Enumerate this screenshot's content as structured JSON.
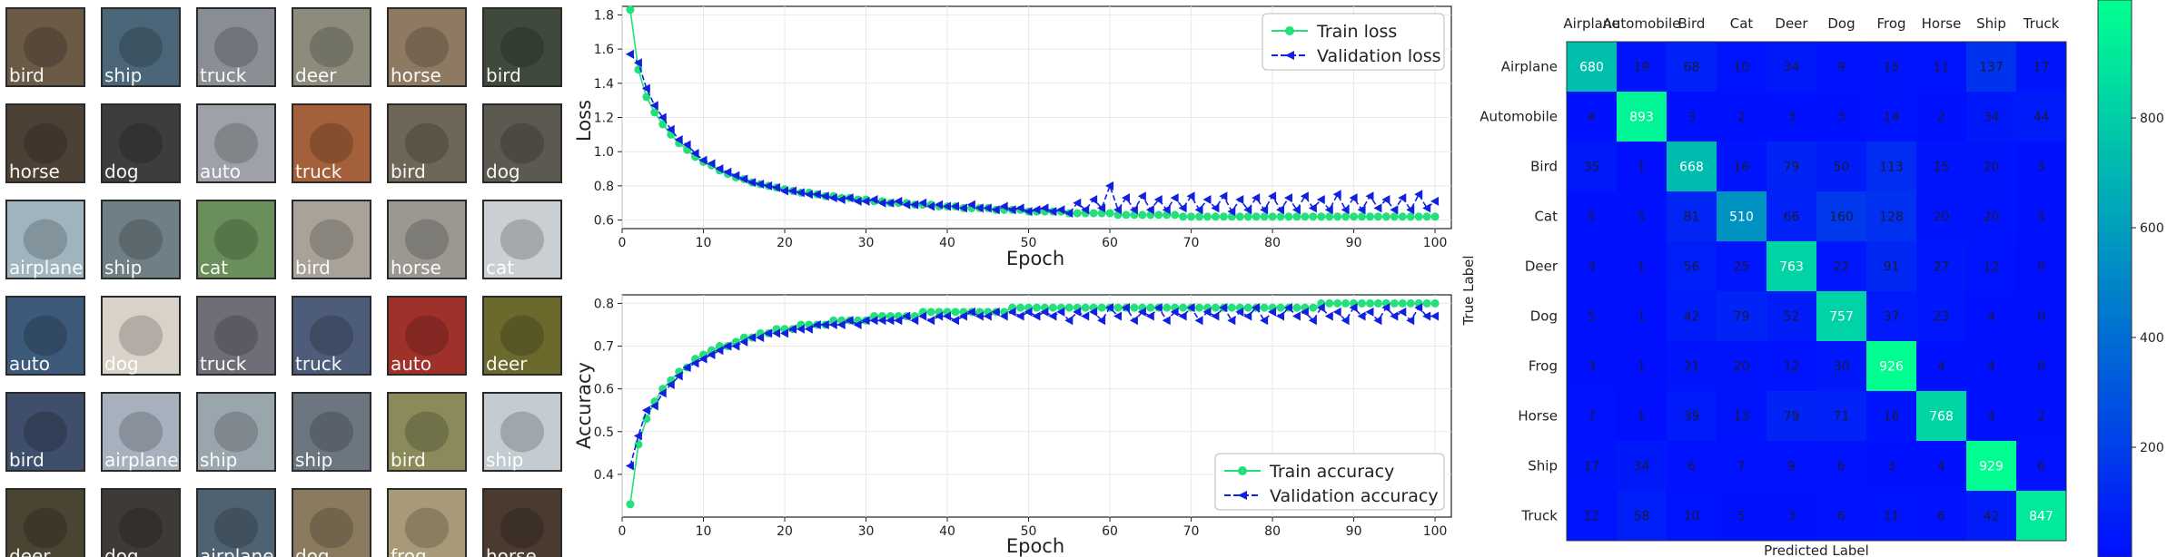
{
  "samples": {
    "grid": [
      [
        "bird",
        "ship",
        "truck",
        "deer",
        "horse",
        "bird"
      ],
      [
        "horse",
        "dog",
        "auto",
        "truck",
        "bird",
        "dog"
      ],
      [
        "airplane",
        "ship",
        "cat",
        "bird",
        "horse",
        "cat"
      ],
      [
        "auto",
        "dog",
        "truck",
        "truck",
        "auto",
        "deer"
      ],
      [
        "bird",
        "airplane",
        "ship",
        "ship",
        "bird",
        "ship"
      ],
      [
        "deer",
        "dog",
        "airplane",
        "dog",
        "frog",
        "horse"
      ]
    ],
    "tile_colors": [
      [
        "#6b5a46",
        "#4a6678",
        "#8a8f96",
        "#8c8b7c",
        "#8e7a62",
        "#3f4a3c"
      ],
      [
        "#4d4136",
        "#3d3d3d",
        "#9ea2a8",
        "#a3603a",
        "#6e6656",
        "#5c5a50"
      ],
      [
        "#9fb4be",
        "#6f7f86",
        "#6a8f5a",
        "#a8a298",
        "#9a9890",
        "#c9cfd2"
      ],
      [
        "#3d5a7a",
        "#d9d2c8",
        "#6e6e78",
        "#4d5c78",
        "#a0302a",
        "#6b6a2c"
      ],
      [
        "#3f4e6a",
        "#a7b0bd",
        "#9aa6ae",
        "#6c7680",
        "#8a8a5a",
        "#c4ccd2"
      ],
      [
        "#4a4432",
        "#3e3a36",
        "#4f6272",
        "#8a7a5e",
        "#a89a78",
        "#4a3a30"
      ]
    ]
  },
  "chart_data": [
    {
      "type": "line",
      "ylabel": "Loss",
      "xlabel": "Epoch",
      "xlim": [
        0,
        102
      ],
      "ylim": [
        0.55,
        1.85
      ],
      "xticks": [
        0,
        10,
        20,
        30,
        40,
        50,
        60,
        70,
        80,
        90,
        100
      ],
      "yticks": [
        0.6,
        0.8,
        1.0,
        1.2,
        1.4,
        1.6,
        1.8
      ],
      "legend_position": "upper-right",
      "grid": true,
      "series": [
        {
          "name": "Train loss",
          "color": "#22e07a",
          "values": [
            1.83,
            1.48,
            1.32,
            1.23,
            1.16,
            1.1,
            1.05,
            1.01,
            0.97,
            0.94,
            0.92,
            0.89,
            0.87,
            0.85,
            0.84,
            0.82,
            0.81,
            0.8,
            0.79,
            0.78,
            0.77,
            0.76,
            0.76,
            0.75,
            0.74,
            0.74,
            0.73,
            0.73,
            0.72,
            0.72,
            0.71,
            0.71,
            0.7,
            0.7,
            0.7,
            0.69,
            0.69,
            0.69,
            0.68,
            0.68,
            0.68,
            0.67,
            0.67,
            0.67,
            0.67,
            0.66,
            0.66,
            0.66,
            0.66,
            0.65,
            0.65,
            0.65,
            0.65,
            0.65,
            0.64,
            0.64,
            0.64,
            0.64,
            0.64,
            0.64,
            0.63,
            0.63,
            0.63,
            0.63,
            0.63,
            0.63,
            0.63,
            0.63,
            0.62,
            0.62,
            0.62,
            0.62,
            0.62,
            0.62,
            0.62,
            0.62,
            0.62,
            0.62,
            0.62,
            0.62,
            0.62,
            0.62,
            0.62,
            0.62,
            0.62,
            0.62,
            0.62,
            0.62,
            0.62,
            0.62,
            0.62,
            0.62,
            0.62,
            0.62,
            0.62,
            0.62,
            0.62,
            0.62,
            0.62,
            0.62
          ]
        },
        {
          "name": "Validation loss",
          "color": "#1020e0",
          "values": [
            1.57,
            1.52,
            1.37,
            1.27,
            1.2,
            1.13,
            1.07,
            1.04,
            0.99,
            0.95,
            0.93,
            0.9,
            0.88,
            0.86,
            0.84,
            0.82,
            0.81,
            0.8,
            0.79,
            0.77,
            0.77,
            0.76,
            0.75,
            0.75,
            0.74,
            0.73,
            0.72,
            0.73,
            0.71,
            0.71,
            0.72,
            0.7,
            0.7,
            0.71,
            0.69,
            0.69,
            0.7,
            0.68,
            0.69,
            0.68,
            0.68,
            0.67,
            0.69,
            0.67,
            0.67,
            0.66,
            0.68,
            0.66,
            0.67,
            0.65,
            0.66,
            0.67,
            0.65,
            0.66,
            0.64,
            0.7,
            0.66,
            0.72,
            0.67,
            0.8,
            0.66,
            0.73,
            0.66,
            0.74,
            0.66,
            0.72,
            0.66,
            0.73,
            0.67,
            0.74,
            0.66,
            0.72,
            0.67,
            0.74,
            0.65,
            0.72,
            0.66,
            0.73,
            0.66,
            0.74,
            0.66,
            0.73,
            0.66,
            0.74,
            0.67,
            0.72,
            0.66,
            0.75,
            0.66,
            0.73,
            0.66,
            0.74,
            0.67,
            0.72,
            0.66,
            0.73,
            0.66,
            0.75,
            0.67,
            0.71
          ]
        }
      ]
    },
    {
      "type": "line",
      "ylabel": "Accuracy",
      "xlabel": "Epoch",
      "xlim": [
        0,
        102
      ],
      "ylim": [
        0.3,
        0.82
      ],
      "xticks": [
        0,
        10,
        20,
        30,
        40,
        50,
        60,
        70,
        80,
        90,
        100
      ],
      "yticks": [
        0.4,
        0.5,
        0.6,
        0.7,
        0.8
      ],
      "legend_position": "lower-right",
      "grid": true,
      "series": [
        {
          "name": "Train accuracy",
          "color": "#22e07a",
          "values": [
            0.33,
            0.47,
            0.53,
            0.57,
            0.6,
            0.62,
            0.64,
            0.65,
            0.67,
            0.68,
            0.69,
            0.7,
            0.7,
            0.71,
            0.72,
            0.72,
            0.73,
            0.73,
            0.74,
            0.74,
            0.74,
            0.75,
            0.75,
            0.75,
            0.75,
            0.76,
            0.76,
            0.76,
            0.76,
            0.76,
            0.77,
            0.77,
            0.77,
            0.77,
            0.77,
            0.77,
            0.78,
            0.78,
            0.78,
            0.78,
            0.78,
            0.78,
            0.78,
            0.78,
            0.78,
            0.78,
            0.78,
            0.79,
            0.79,
            0.79,
            0.79,
            0.79,
            0.79,
            0.79,
            0.79,
            0.79,
            0.79,
            0.79,
            0.79,
            0.79,
            0.79,
            0.79,
            0.79,
            0.79,
            0.79,
            0.79,
            0.79,
            0.79,
            0.79,
            0.79,
            0.79,
            0.79,
            0.79,
            0.79,
            0.79,
            0.79,
            0.79,
            0.79,
            0.79,
            0.79,
            0.79,
            0.79,
            0.79,
            0.79,
            0.79,
            0.8,
            0.8,
            0.8,
            0.8,
            0.8,
            0.8,
            0.8,
            0.8,
            0.8,
            0.8,
            0.8,
            0.8,
            0.8,
            0.8,
            0.8
          ]
        },
        {
          "name": "Validation accuracy",
          "color": "#1020e0",
          "values": [
            0.42,
            0.49,
            0.55,
            0.56,
            0.59,
            0.61,
            0.63,
            0.65,
            0.66,
            0.67,
            0.68,
            0.69,
            0.7,
            0.7,
            0.71,
            0.72,
            0.72,
            0.73,
            0.73,
            0.73,
            0.74,
            0.74,
            0.74,
            0.75,
            0.75,
            0.75,
            0.75,
            0.76,
            0.75,
            0.76,
            0.76,
            0.76,
            0.76,
            0.76,
            0.77,
            0.76,
            0.77,
            0.76,
            0.77,
            0.77,
            0.76,
            0.77,
            0.78,
            0.77,
            0.77,
            0.78,
            0.77,
            0.78,
            0.77,
            0.78,
            0.77,
            0.78,
            0.77,
            0.78,
            0.76,
            0.78,
            0.77,
            0.78,
            0.76,
            0.79,
            0.77,
            0.79,
            0.76,
            0.78,
            0.77,
            0.79,
            0.76,
            0.78,
            0.77,
            0.79,
            0.76,
            0.78,
            0.77,
            0.79,
            0.76,
            0.78,
            0.77,
            0.79,
            0.76,
            0.78,
            0.77,
            0.79,
            0.77,
            0.78,
            0.76,
            0.79,
            0.77,
            0.78,
            0.76,
            0.79,
            0.77,
            0.78,
            0.76,
            0.79,
            0.77,
            0.78,
            0.76,
            0.79,
            0.77,
            0.77
          ]
        }
      ]
    },
    {
      "type": "heatmap",
      "xlabel": "Predicted Label",
      "ylabel": "True Label",
      "x_categories": [
        "Airplane",
        "Automobile",
        "Bird",
        "Cat",
        "Deer",
        "Dog",
        "Frog",
        "Horse",
        "Ship",
        "Truck"
      ],
      "y_categories": [
        "Airplane",
        "Automobile",
        "Bird",
        "Cat",
        "Deer",
        "Dog",
        "Frog",
        "Horse",
        "Ship",
        "Truck"
      ],
      "values": [
        [
          680,
          19,
          68,
          10,
          34,
          9,
          15,
          11,
          137,
          17
        ],
        [
          4,
          893,
          3,
          2,
          3,
          3,
          14,
          2,
          34,
          44
        ],
        [
          35,
          1,
          668,
          16,
          79,
          50,
          113,
          15,
          20,
          3
        ],
        [
          5,
          5,
          81,
          510,
          66,
          160,
          128,
          20,
          20,
          5
        ],
        [
          3,
          1,
          56,
          25,
          763,
          22,
          91,
          27,
          12,
          0
        ],
        [
          5,
          1,
          42,
          79,
          52,
          757,
          37,
          23,
          4,
          0
        ],
        [
          3,
          1,
          21,
          20,
          12,
          30,
          926,
          4,
          4,
          0
        ],
        [
          7,
          1,
          39,
          13,
          79,
          71,
          16,
          768,
          4,
          2
        ],
        [
          17,
          34,
          6,
          7,
          9,
          6,
          3,
          4,
          929,
          6
        ],
        [
          12,
          58,
          10,
          5,
          3,
          6,
          11,
          6,
          42,
          847
        ]
      ],
      "colorbar": {
        "ticks": [
          200,
          400,
          600,
          800
        ],
        "range": [
          0,
          929
        ]
      },
      "colormap": [
        "#0010ff",
        "#00ff90"
      ]
    }
  ]
}
